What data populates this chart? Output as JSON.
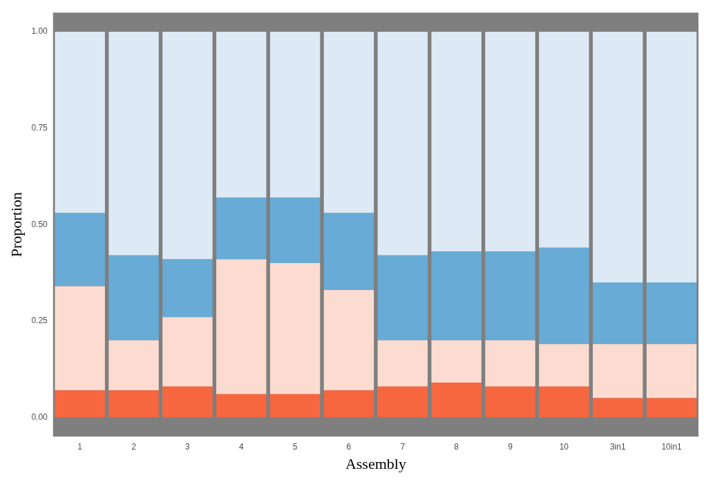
{
  "chart_data": {
    "type": "bar",
    "xlabel": "Assembly",
    "ylabel": "Proportion",
    "stacked": true,
    "grid": false,
    "legend": false,
    "categories": [
      "1",
      "2",
      "3",
      "4",
      "5",
      "6",
      "7",
      "8",
      "9",
      "10",
      "3in1",
      "10in1"
    ],
    "ylim": [
      -0.05,
      1.05
    ],
    "yticks": [
      {
        "value": 0,
        "label": "0.00"
      },
      {
        "value": 0.25,
        "label": "0.25"
      },
      {
        "value": 0.5,
        "label": "0.50"
      },
      {
        "value": 0.75,
        "label": "0.75"
      },
      {
        "value": 1,
        "label": "1.00"
      }
    ],
    "series": [
      {
        "color": "#f7673f",
        "values": [
          0.07,
          0.07,
          0.08,
          0.06,
          0.06,
          0.07,
          0.08,
          0.09,
          0.08,
          0.08,
          0.05,
          0.05
        ]
      },
      {
        "color": "#fcdcd0",
        "values": [
          0.27,
          0.13,
          0.18,
          0.35,
          0.34,
          0.26,
          0.12,
          0.11,
          0.12,
          0.11,
          0.14,
          0.14
        ]
      },
      {
        "color": "#67abd6",
        "values": [
          0.19,
          0.22,
          0.15,
          0.16,
          0.17,
          0.2,
          0.22,
          0.23,
          0.23,
          0.25,
          0.16,
          0.16
        ]
      },
      {
        "color": "#dde9f5",
        "values": [
          0.47,
          0.58,
          0.59,
          0.43,
          0.43,
          0.47,
          0.58,
          0.57,
          0.57,
          0.56,
          0.65,
          0.65
        ]
      }
    ]
  }
}
